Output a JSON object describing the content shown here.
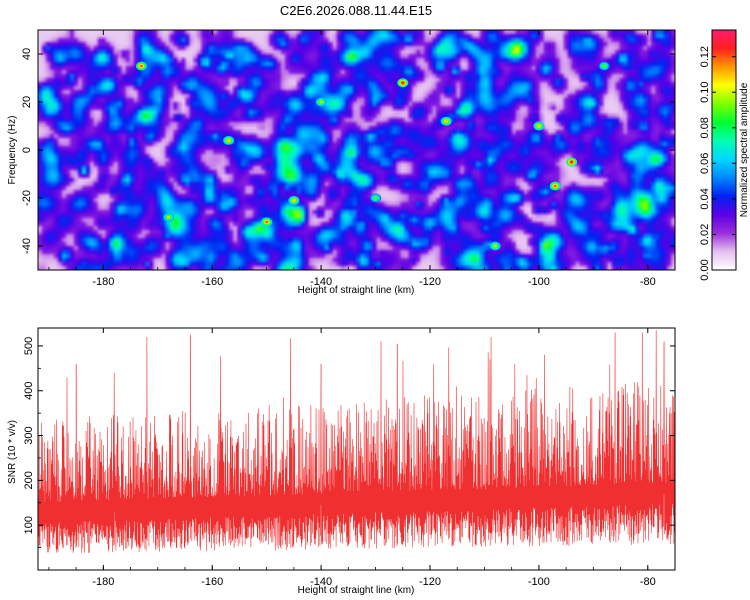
{
  "title": "C2E6.2026.088.11.44.E15",
  "chart_data": [
    {
      "type": "heatmap",
      "xlabel": "Height of straight line (km)",
      "ylabel": "Frequency (Hz)",
      "xlim": [
        -192,
        -75
      ],
      "ylim": [
        -50,
        50
      ],
      "xticks": [
        -180,
        -160,
        -140,
        -120,
        -100,
        -80
      ],
      "yticks": [
        -40,
        -20,
        0,
        20,
        40
      ],
      "colorbar": {
        "label": "Normalized spectral amplitude",
        "range": [
          0.0,
          0.135
        ],
        "ticks": [
          "0.00",
          "0.02",
          "0.04",
          "0.06",
          "0.08",
          "0.10",
          "0.12"
        ],
        "colors": [
          "#ffffff",
          "#e4bff0",
          "#9b2ddc",
          "#5a00e6",
          "#0022f0",
          "#0088ff",
          "#00d8ff",
          "#00ffb0",
          "#00ff30",
          "#7cff00",
          "#ffff00",
          "#ff9800",
          "#ff2020",
          "#ff1a6c"
        ]
      },
      "peaks": [
        {
          "x": -173,
          "y": 35,
          "v": 0.12
        },
        {
          "x": -157,
          "y": 4,
          "v": 0.11
        },
        {
          "x": -150,
          "y": -30,
          "v": 0.12
        },
        {
          "x": -145,
          "y": -21,
          "v": 0.11
        },
        {
          "x": -125,
          "y": 28,
          "v": 0.13
        },
        {
          "x": -117,
          "y": 12,
          "v": 0.11
        },
        {
          "x": -100,
          "y": 10,
          "v": 0.11
        },
        {
          "x": -97,
          "y": -15,
          "v": 0.12
        },
        {
          "x": -94,
          "y": -5,
          "v": 0.13
        },
        {
          "x": -168,
          "y": -28,
          "v": 0.1
        },
        {
          "x": -140,
          "y": 20,
          "v": 0.1
        },
        {
          "x": -108,
          "y": -40,
          "v": 0.1
        },
        {
          "x": -130,
          "y": -20,
          "v": 0.09
        },
        {
          "x": -88,
          "y": 35,
          "v": 0.09
        }
      ]
    },
    {
      "type": "line",
      "xlabel": "Height of straight line (km)",
      "ylabel": "SNR (10 * v/v)",
      "xlim": [
        -192,
        -75
      ],
      "ylim": [
        0,
        540
      ],
      "xticks": [
        -180,
        -160,
        -140,
        -120,
        -100,
        -80
      ],
      "yticks": [
        100,
        200,
        300,
        400,
        500
      ],
      "color": "#f03030",
      "trend": {
        "x": [
          -192,
          -170,
          -150,
          -130,
          -110,
          -90,
          -75
        ],
        "y": [
          125,
          135,
          140,
          150,
          155,
          165,
          170
        ]
      },
      "peaks": [
        {
          "x": -172,
          "y": 520
        },
        {
          "x": -164,
          "y": 525
        },
        {
          "x": -129,
          "y": 510
        },
        {
          "x": -126,
          "y": 505
        },
        {
          "x": -86,
          "y": 530
        },
        {
          "x": -81,
          "y": 530
        },
        {
          "x": -77,
          "y": 510
        },
        {
          "x": -185,
          "y": 460
        },
        {
          "x": -178,
          "y": 440
        },
        {
          "x": -140,
          "y": 460
        },
        {
          "x": -109,
          "y": 470
        },
        {
          "x": -99,
          "y": 480
        }
      ]
    }
  ]
}
